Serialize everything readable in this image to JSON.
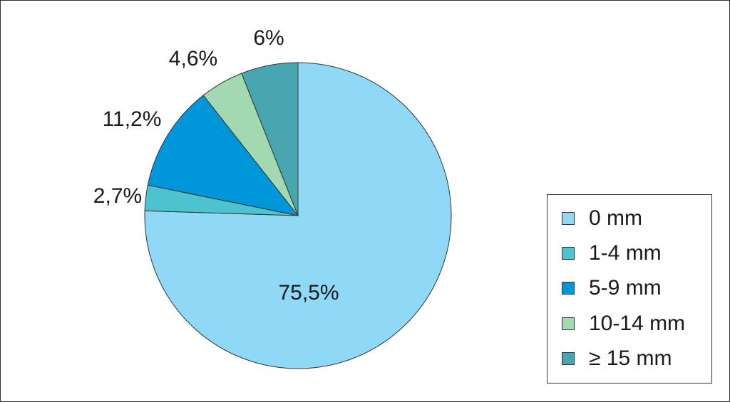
{
  "chart_data": {
    "type": "pie",
    "title": "",
    "start_angle_deg": 90,
    "direction": "clockwise",
    "legend_position": "right",
    "slices": [
      {
        "label": "0 mm",
        "value": 75.5,
        "display": "75,5%",
        "color": "#8fd9f7"
      },
      {
        "label": "1-4 mm",
        "value": 2.7,
        "display": "2,7%",
        "color": "#4ec3d0"
      },
      {
        "label": "5-9 mm",
        "value": 11.2,
        "display": "11,2%",
        "color": "#0097da"
      },
      {
        "label": "10-14 mm",
        "value": 4.6,
        "display": "4,6%",
        "color": "#a3d9b1"
      },
      {
        "label": "≥ 15 mm",
        "value": 6,
        "display": "6%",
        "color": "#48a6b0"
      }
    ]
  },
  "legend": {
    "items": [
      {
        "label": "0 mm",
        "color": "#8fd9f7"
      },
      {
        "label": "1-4 mm",
        "color": "#4ec3d0"
      },
      {
        "label": "5-9 mm",
        "color": "#0097da"
      },
      {
        "label": "10-14 mm",
        "color": "#a3d9b1"
      },
      {
        "label": "≥ 15 mm",
        "color": "#48a6b0"
      }
    ]
  }
}
